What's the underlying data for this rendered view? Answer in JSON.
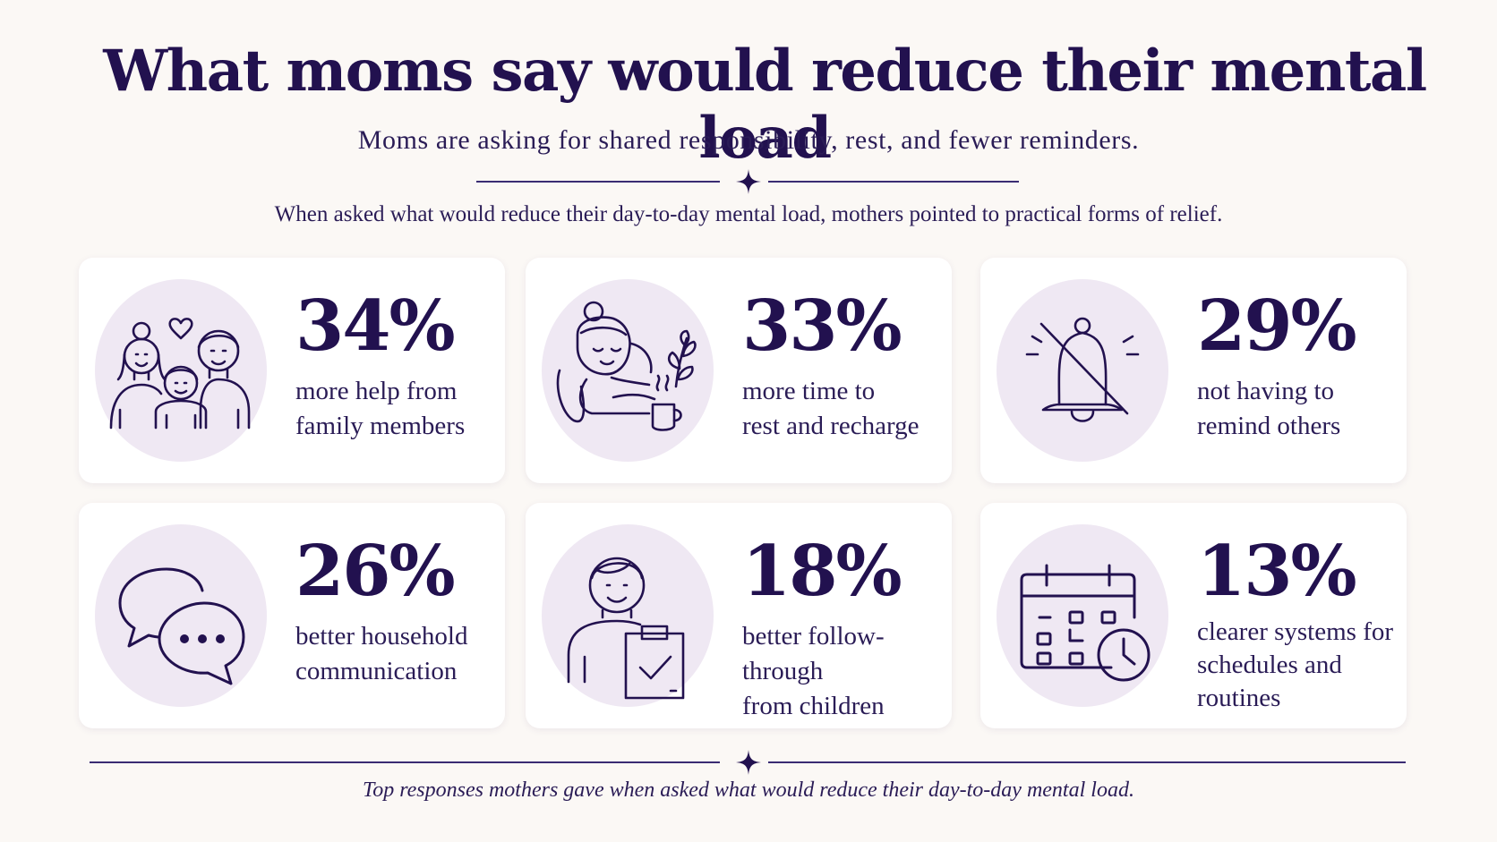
{
  "header": {
    "title": "What moms say would reduce their mental load",
    "subtitle": "Moms are asking for shared responsibility, rest, and fewer reminders.",
    "intro": "When asked what would reduce their day-to-day mental load, mothers pointed to practical forms of relief."
  },
  "stats": [
    {
      "percent": "34%",
      "line1": "more help from",
      "line2": "family members",
      "line3": "",
      "value": 34,
      "icon": "family-icon"
    },
    {
      "percent": "33%",
      "line1": "more time to",
      "line2": "rest and recharge",
      "line3": "",
      "value": 33,
      "icon": "resting-woman-icon"
    },
    {
      "percent": "29%",
      "line1": "not having to",
      "line2": "remind others",
      "line3": "",
      "value": 29,
      "icon": "muted-bell-icon"
    },
    {
      "percent": "26%",
      "line1": "better household",
      "line2": "communication",
      "line3": "",
      "value": 26,
      "icon": "speech-bubbles-icon"
    },
    {
      "percent": "18%",
      "line1": "better follow-through",
      "line2": "from children",
      "line3": "",
      "value": 18,
      "icon": "child-checklist-icon"
    },
    {
      "percent": "13%",
      "line1": "clearer systems for",
      "line2": "schedules and",
      "line3": "routines",
      "value": 13,
      "icon": "calendar-clock-icon"
    }
  ],
  "footer": {
    "note": "Top responses mothers gave when asked what would reduce their day-to-day mental load."
  },
  "colors": {
    "background": "#fbf8f5",
    "ink": "#22114f",
    "icon_circle": "#efe8f3",
    "card": "#ffffff"
  }
}
